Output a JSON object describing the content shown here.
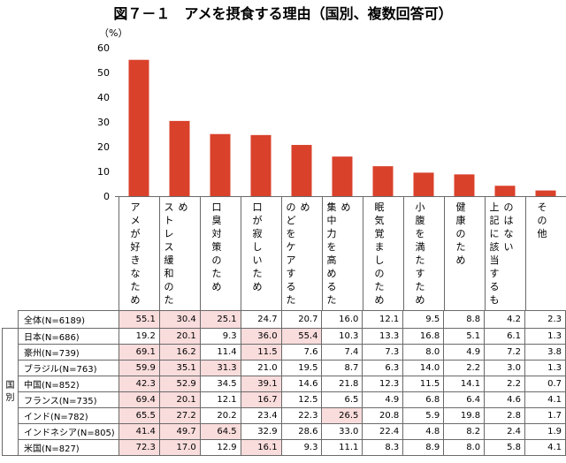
{
  "title": "図７－１　アメを摂食する理由（国別、複数回答可）",
  "y_unit": "（%）",
  "group_label": "国別",
  "highlight_color": "#f9dcdc",
  "bar_color": "#d9412b",
  "chart_data": {
    "type": "bar",
    "title": "図７－１　アメを摂食する理由（国別、複数回答可）",
    "ylabel": "（%）",
    "ylim": [
      0,
      60
    ],
    "yticks": [
      0,
      10,
      20,
      30,
      40,
      50,
      60
    ],
    "grid": false,
    "categories": [
      "アメが好きなため",
      "ストレス緩和のため",
      "口臭対策のため",
      "口が寂しいため",
      "のどをケアするため",
      "集中力を高めるため",
      "眠気覚ましのため",
      "小腹を満たすため",
      "健康のため",
      "上記に該当するものはない",
      "その他"
    ],
    "series": [
      {
        "name": "全体(N=6189)",
        "values": [
          55.1,
          30.4,
          25.1,
          24.7,
          20.7,
          16.0,
          12.1,
          9.5,
          8.8,
          4.2,
          2.3
        ]
      }
    ]
  },
  "table": {
    "rows": [
      {
        "label": "全体(N=6189)",
        "values": [
          "55.1",
          "30.4",
          "25.1",
          "24.7",
          "20.7",
          "16.0",
          "12.1",
          "9.5",
          "8.8",
          "4.2",
          "2.3"
        ],
        "hl": [
          0,
          1,
          2
        ]
      },
      {
        "label": "日本(N=686)",
        "values": [
          "19.2",
          "20.1",
          "9.3",
          "36.0",
          "55.4",
          "10.3",
          "13.3",
          "16.8",
          "5.1",
          "6.1",
          "1.3"
        ],
        "hl": [
          1,
          3,
          4
        ]
      },
      {
        "label": "豪州(N=739)",
        "values": [
          "69.1",
          "16.2",
          "11.4",
          "11.5",
          "7.6",
          "7.4",
          "7.3",
          "8.0",
          "4.9",
          "7.2",
          "3.8"
        ],
        "hl": [
          0,
          1,
          3
        ]
      },
      {
        "label": "ブラジル(N=763)",
        "values": [
          "59.9",
          "35.1",
          "31.3",
          "21.0",
          "19.5",
          "8.7",
          "6.3",
          "14.0",
          "2.2",
          "3.0",
          "1.3"
        ],
        "hl": [
          0,
          1,
          2
        ]
      },
      {
        "label": "中国(N=852)",
        "values": [
          "42.3",
          "52.9",
          "34.5",
          "39.1",
          "14.6",
          "21.8",
          "12.3",
          "11.5",
          "14.1",
          "2.2",
          "0.7"
        ],
        "hl": [
          0,
          1,
          3
        ]
      },
      {
        "label": "フランス(N=735)",
        "values": [
          "69.4",
          "20.1",
          "12.1",
          "16.7",
          "12.5",
          "6.5",
          "4.9",
          "6.8",
          "6.4",
          "4.6",
          "4.1"
        ],
        "hl": [
          0,
          1,
          3
        ]
      },
      {
        "label": "インド(N=782)",
        "values": [
          "65.5",
          "27.2",
          "20.2",
          "23.4",
          "22.3",
          "26.5",
          "20.8",
          "5.9",
          "19.8",
          "2.8",
          "1.7"
        ],
        "hl": [
          0,
          1,
          5
        ]
      },
      {
        "label": "インドネシア(N=805)",
        "values": [
          "41.4",
          "49.7",
          "64.5",
          "32.9",
          "28.6",
          "33.0",
          "22.4",
          "4.8",
          "8.2",
          "2.4",
          "1.9"
        ],
        "hl": [
          0,
          1,
          2
        ]
      },
      {
        "label": "米国(N=827)",
        "values": [
          "72.3",
          "17.0",
          "12.9",
          "16.1",
          "9.3",
          "11.1",
          "8.3",
          "8.9",
          "8.0",
          "5.8",
          "4.1"
        ],
        "hl": [
          0,
          1,
          3
        ]
      }
    ]
  }
}
